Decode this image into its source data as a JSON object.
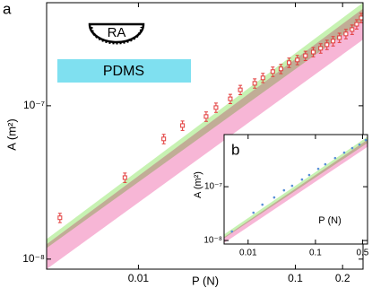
{
  "chart_data": [
    {
      "type": "scatter",
      "panel_label": "a",
      "x_label": "P (N)",
      "y_label": "A (m²)",
      "log_x": true,
      "log_y": true,
      "xlim": [
        0.0026,
        0.27
      ],
      "ylim": [
        8.6e-09,
        4.7e-07
      ],
      "xticks": [
        0.01,
        0.1,
        0.2
      ],
      "yticks": [
        {
          "value": 1e-08,
          "label": "10⁻⁸"
        },
        {
          "value": 1e-07,
          "label": "10⁻⁷"
        }
      ],
      "annotations": [
        "RA",
        "PDMS"
      ],
      "bands": [
        {
          "color": "#bdf0a4",
          "x": [
            0.0026,
            0.27
          ],
          "lower": [
            1.18e-08,
            3.6e-07
          ],
          "upper": [
            1.35e-08,
            4.7e-07
          ]
        },
        {
          "color": "#f6a9cf",
          "x": [
            0.0026,
            0.27
          ],
          "lower": [
            8.6e-09,
            2.7e-07
          ],
          "upper": [
            1.25e-08,
            4.3e-07
          ]
        }
      ],
      "series": [
        {
          "color": "#e23a3a",
          "x": [
            0.00316,
            0.0082,
            0.0145,
            0.0191,
            0.027,
            0.0312,
            0.0385,
            0.0446,
            0.0551,
            0.0621,
            0.0718,
            0.0809,
            0.0912,
            0.103,
            0.116,
            0.13,
            0.145,
            0.159,
            0.174,
            0.191,
            0.21,
            0.23,
            0.246,
            0.263
          ],
          "values": [
            1.86e-08,
            3.4e-08,
            6.08e-08,
            7.43e-08,
            8.51e-08,
            9.73e-08,
            1.11e-07,
            1.27e-07,
            1.4e-07,
            1.52e-07,
            1.67e-07,
            1.74e-07,
            1.91e-07,
            1.99e-07,
            2.12e-07,
            2.24e-07,
            2.37e-07,
            2.5e-07,
            2.64e-07,
            2.78e-07,
            2.94e-07,
            3.14e-07,
            3.4e-07,
            3.74e-07
          ],
          "errors": [
            1.3e-09,
            2.4e-09,
            4.3e-09,
            5.2e-09,
            6e-09,
            6.8e-09,
            7.8e-09,
            8.9e-09,
            9.8e-09,
            1.06e-08,
            1.17e-08,
            1.22e-08,
            1.34e-08,
            1.39e-08,
            1.48e-08,
            1.57e-08,
            1.66e-08,
            1.75e-08,
            1.85e-08,
            1.95e-08,
            2.06e-08,
            2.2e-08,
            2.38e-08,
            2.62e-08
          ]
        }
      ]
    },
    {
      "type": "scatter",
      "panel_label": "b",
      "x_label": "P (N)",
      "y_label": "A (m²)",
      "log_x": true,
      "log_y": true,
      "xlim": [
        0.0044,
        0.593
      ],
      "ylim": [
        8.6e-09,
        9.3e-07
      ],
      "xticks": [
        0.01,
        0.1,
        0.5
      ],
      "yticks": [
        {
          "value": 1e-08,
          "label": "10⁻⁸"
        },
        {
          "value": 1e-07,
          "label": "10⁻⁷"
        }
      ],
      "bands": [
        {
          "color": "#bdf0a4",
          "x": [
            0.0044,
            0.593
          ],
          "lower": [
            1.1e-08,
            6.5e-07
          ],
          "upper": [
            1.3e-08,
            8.5e-07
          ]
        },
        {
          "color": "#f6a9cf",
          "x": [
            0.0044,
            0.593
          ],
          "lower": [
            9e-09,
            5.5e-07
          ],
          "upper": [
            1.15e-08,
            7.5e-07
          ]
        }
      ],
      "series": [
        {
          "color": "#5a8fd8",
          "x": [
            0.00575,
            0.012,
            0.0163,
            0.0244,
            0.0341,
            0.045,
            0.0631,
            0.0807,
            0.11,
            0.14,
            0.196,
            0.267,
            0.352,
            0.45,
            0.558
          ],
          "values": [
            1.47e-08,
            3.29e-08,
            4.64e-08,
            6.31e-08,
            8.58e-08,
            1.04e-07,
            1.36e-07,
            1.65e-07,
            2.15e-07,
            2.61e-07,
            3.41e-07,
            4.3e-07,
            5.21e-07,
            6.07e-07,
            7.36e-07
          ]
        }
      ]
    }
  ]
}
